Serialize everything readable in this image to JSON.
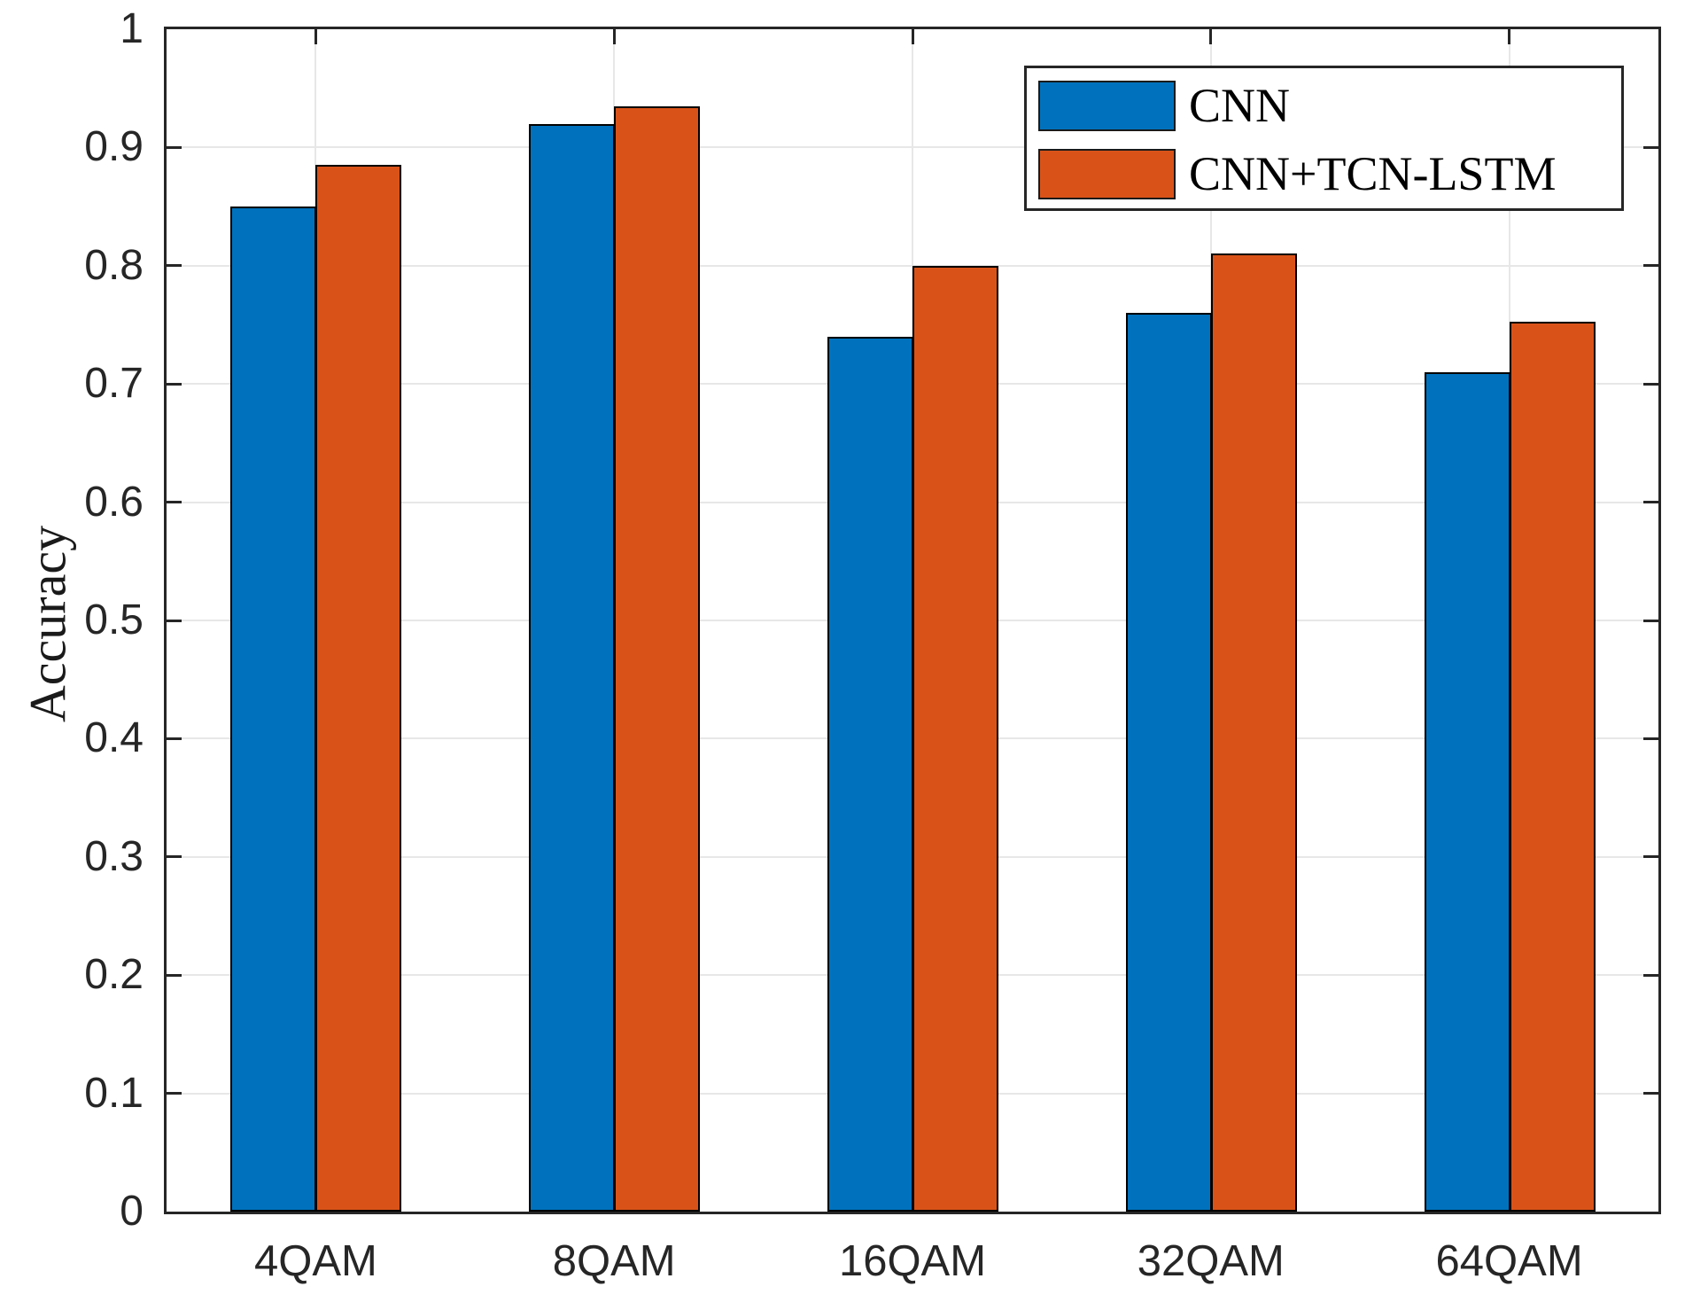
{
  "figure": {
    "background_color": "#ffffff",
    "axis_color": "#262626",
    "grid_color": "#e7e7e7",
    "bar_edge_color": "#000000",
    "text_color": "#262626"
  },
  "axes": {
    "ylabel": "Accuracy",
    "yticks": [
      0,
      0.1,
      0.2,
      0.3,
      0.4,
      0.5,
      0.6,
      0.7,
      0.8,
      0.9,
      1
    ],
    "ytick_labels": [
      "0",
      "0.1",
      "0.2",
      "0.3",
      "0.4",
      "0.5",
      "0.6",
      "0.7",
      "0.8",
      "0.9",
      "1"
    ]
  },
  "legend": {
    "position": "top-right",
    "items": [
      {
        "label": "CNN",
        "color": "#0072BD"
      },
      {
        "label": "CNN+TCN-LSTM",
        "color": "#D95319"
      }
    ]
  },
  "chart_data": {
    "type": "bar",
    "categories": [
      "4QAM",
      "8QAM",
      "16QAM",
      "32QAM",
      "64QAM"
    ],
    "series": [
      {
        "name": "CNN",
        "color": "#0072BD",
        "values": [
          0.85,
          0.92,
          0.74,
          0.76,
          0.71
        ]
      },
      {
        "name": "CNN+TCN-LSTM",
        "color": "#D95319",
        "values": [
          0.885,
          0.935,
          0.8,
          0.81,
          0.753
        ]
      }
    ],
    "title": "",
    "xlabel": "",
    "ylabel": "Accuracy",
    "ylim": [
      0,
      1
    ],
    "grid": true,
    "legend_position": "top-right"
  }
}
